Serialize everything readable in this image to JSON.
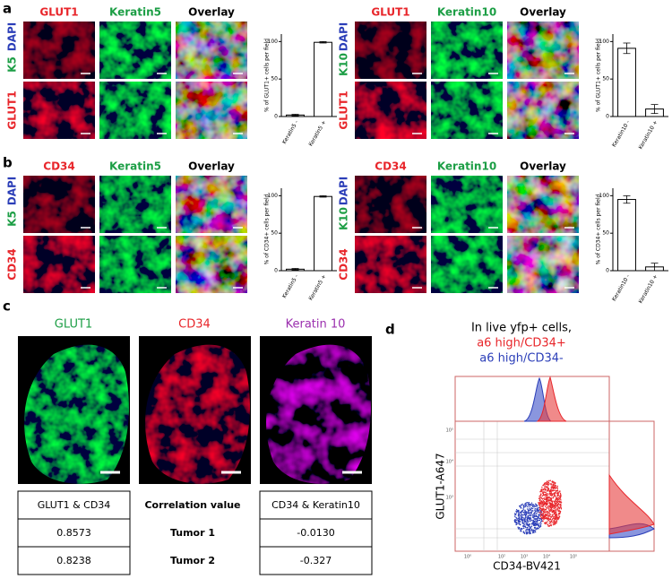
{
  "panels": [
    {
      "label": "a",
      "groups": [
        {
          "columns": [
            "GLUT1",
            "Keratin5",
            "Overlay"
          ],
          "row_labels": [
            [
              "DAPI",
              "K5"
            ],
            [
              "GLUT1"
            ]
          ],
          "chart_data": {
            "type": "bar",
            "ylabel": "% of GLUT1+ cells per field",
            "categories": [
              "Keratin5 -",
              "Keratin5 +"
            ],
            "values": [
              2,
              99
            ],
            "errors": [
              1,
              1
            ],
            "ylim": [
              0,
              110
            ],
            "yticks": [
              0,
              50,
              100
            ]
          }
        },
        {
          "columns": [
            "GLUT1",
            "Keratin10",
            "Overlay"
          ],
          "row_labels": [
            [
              "DAPI",
              "K10"
            ],
            [
              "GLUT1"
            ]
          ],
          "chart_data": {
            "type": "bar",
            "ylabel": "% of GLUT1+ cells per field",
            "categories": [
              "Keratin10 -",
              "Keratin10 +"
            ],
            "values": [
              91,
              10
            ],
            "errors": [
              7,
              6
            ],
            "ylim": [
              0,
              110
            ],
            "yticks": [
              0,
              50,
              100
            ]
          }
        }
      ]
    },
    {
      "label": "b",
      "groups": [
        {
          "columns": [
            "CD34",
            "Keratin5",
            "Overlay"
          ],
          "row_labels": [
            [
              "DAPI",
              "K5"
            ],
            [
              "CD34"
            ]
          ],
          "chart_data": {
            "type": "bar",
            "ylabel": "% of CD34+ cells per field",
            "categories": [
              "Keratin5 -",
              "Keratin5 +"
            ],
            "values": [
              2,
              99
            ],
            "errors": [
              1,
              1
            ],
            "ylim": [
              0,
              110
            ],
            "yticks": [
              0,
              50,
              100
            ]
          }
        },
        {
          "columns": [
            "CD34",
            "Keratin10",
            "Overlay"
          ],
          "row_labels": [
            [
              "DAPI",
              "K10"
            ],
            [
              "CD34"
            ]
          ],
          "chart_data": {
            "type": "bar",
            "ylabel": "% of CD34+ cells per field",
            "categories": [
              "Keratin10 -",
              "Keratin10 +"
            ],
            "values": [
              95,
              5
            ],
            "errors": [
              5,
              5
            ],
            "ylim": [
              0,
              110
            ],
            "yticks": [
              0,
              50,
              100
            ]
          }
        }
      ]
    }
  ],
  "panel_c": {
    "label": "c",
    "columns": [
      "GLUT1",
      "CD34",
      "Keratin 10"
    ],
    "table": {
      "rows": [
        [
          "GLUT1 & CD34",
          "Correlation value",
          "CD34 & Keratin10"
        ],
        [
          "0.8573",
          "Tumor 1",
          "-0.0130"
        ],
        [
          "0.8238",
          "Tumor 2",
          "-0.327"
        ]
      ]
    }
  },
  "panel_d": {
    "label": "d",
    "title_lines": [
      "In live yfp+ cells,",
      "a6 high/CD34+",
      "a6 high/CD34-"
    ],
    "xlabel": "CD34-BV421",
    "ylabel": "GLUT1-A647",
    "x_tick_labels": [
      "10⁰",
      "10²",
      "10³",
      "10⁴",
      "10⁵"
    ],
    "y_tick_labels": [
      "10³",
      "10⁴",
      "10⁵"
    ]
  }
}
